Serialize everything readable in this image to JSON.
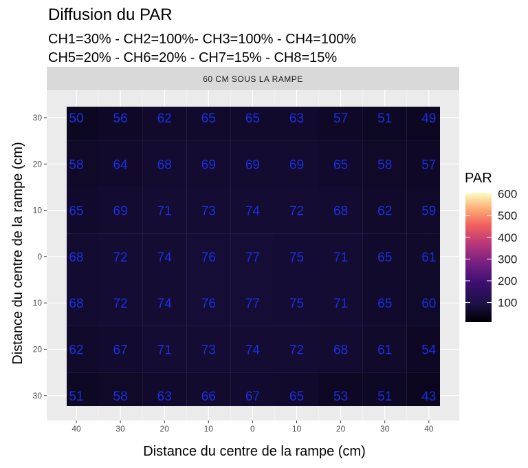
{
  "chart_data": {
    "type": "heatmap",
    "title": "Diffusion du PAR",
    "subtitle_lines": [
      "CH1=30% - CH2=100%- CH3=100% - CH4=100%",
      "CH5=20% - CH6=20% - CH7=15% - CH8=15%"
    ],
    "facet_label": "60 CM SOUS LA RAMPE",
    "xlabel": "Distance du centre de la rampe (cm)",
    "ylabel": "Distance du centre de la rampe (cm)",
    "x_ticks": [
      "40",
      "30",
      "20",
      "10",
      "0",
      "10",
      "20",
      "30",
      "40"
    ],
    "y_ticks": [
      "30",
      "20",
      "10",
      "0",
      "10",
      "20",
      "30"
    ],
    "values": [
      [
        50,
        56,
        62,
        65,
        65,
        63,
        57,
        51,
        49
      ],
      [
        58,
        64,
        68,
        69,
        69,
        69,
        65,
        58,
        57
      ],
      [
        65,
        69,
        71,
        73,
        74,
        72,
        68,
        62,
        59
      ],
      [
        68,
        72,
        74,
        76,
        77,
        75,
        71,
        65,
        61
      ],
      [
        68,
        72,
        74,
        76,
        77,
        75,
        71,
        65,
        60
      ],
      [
        62,
        67,
        71,
        73,
        74,
        72,
        68,
        61,
        54
      ],
      [
        51,
        58,
        63,
        66,
        67,
        65,
        53,
        51,
        43
      ]
    ],
    "label_color": "#1a2fe0",
    "colorscale": "magma",
    "legend": {
      "title": "PAR",
      "ticks": [
        "100",
        "200",
        "300",
        "400",
        "500",
        "600"
      ],
      "position": "right"
    },
    "grid": true
  }
}
